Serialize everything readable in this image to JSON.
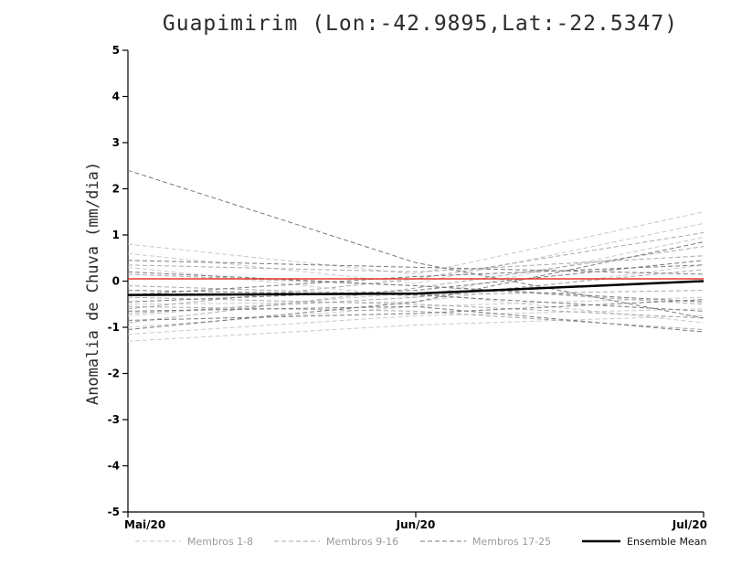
{
  "title": "Guapimirim (Lon:-42.9895,Lat:-22.5347)",
  "chart_data": {
    "type": "line",
    "title": "Guapimirim (Lon:-42.9895,Lat:-22.5347)",
    "xlabel": "",
    "ylabel": "Anomalia de Chuva (mm/dia)",
    "x_categories": [
      "Mai/20",
      "Jun/20",
      "Jul/20"
    ],
    "ylim": [
      -5,
      5
    ],
    "yticks": [
      -5,
      -4,
      -3,
      -2,
      -1,
      0,
      1,
      2,
      3,
      4,
      5
    ],
    "grid": false,
    "legend_position": "bottom",
    "groups": [
      {
        "name": "Membros 1-8",
        "color": "#c9c9c9",
        "style": "dashed",
        "members": [
          [
            0.8,
            0.15,
            1.5
          ],
          [
            0.6,
            -0.05,
            1.25
          ],
          [
            0.3,
            -0.35,
            0.95
          ],
          [
            -0.5,
            -0.45,
            0.35
          ],
          [
            -0.75,
            -0.25,
            -0.9
          ],
          [
            -1.0,
            -0.55,
            -0.35
          ],
          [
            -1.15,
            -0.75,
            -0.6
          ],
          [
            -1.3,
            -0.95,
            -0.75
          ]
        ]
      },
      {
        "name": "Membros 9-16",
        "color": "#a9a9a9",
        "style": "dashed",
        "members": [
          [
            0.35,
            0.2,
            0.55
          ],
          [
            0.15,
            -0.1,
            -0.5
          ],
          [
            -0.1,
            -0.3,
            -0.2
          ],
          [
            -0.35,
            -0.5,
            -0.8
          ],
          [
            -0.55,
            -0.65,
            -1.05
          ],
          [
            -0.7,
            -0.35,
            0.25
          ],
          [
            -0.9,
            -0.15,
            0.75
          ],
          [
            -0.6,
            0.05,
            1.05
          ]
        ]
      },
      {
        "name": "Membros 17-25",
        "color": "#787878",
        "style": "dashed",
        "members": [
          [
            2.4,
            0.4,
            -0.8
          ],
          [
            0.45,
            0.3,
            0.15
          ],
          [
            0.2,
            -0.1,
            -0.45
          ],
          [
            -0.2,
            -0.3,
            -0.65
          ],
          [
            -0.45,
            -0.2,
            0.45
          ],
          [
            -0.65,
            -0.55,
            -1.1
          ],
          [
            -0.85,
            -0.7,
            -0.4
          ],
          [
            -1.05,
            -0.45,
            0.85
          ],
          [
            -0.3,
            0.1,
            0.35
          ]
        ]
      }
    ],
    "zero_line": {
      "name": "zero-reference",
      "color": "#e03a2f",
      "values": [
        0.05,
        0.05,
        0.05
      ]
    },
    "ensemble_mean": {
      "name": "Ensemble Mean",
      "color": "#000000",
      "values": [
        -0.3,
        -0.27,
        0.0
      ]
    }
  },
  "legend": {
    "member_label_color": "#9a9a9a",
    "mean_label_color": "#111111",
    "items": [
      {
        "label": "Membros 1-8"
      },
      {
        "label": "Membros 9-16"
      },
      {
        "label": "Membros 17-25"
      },
      {
        "label": "Ensemble Mean"
      }
    ]
  }
}
